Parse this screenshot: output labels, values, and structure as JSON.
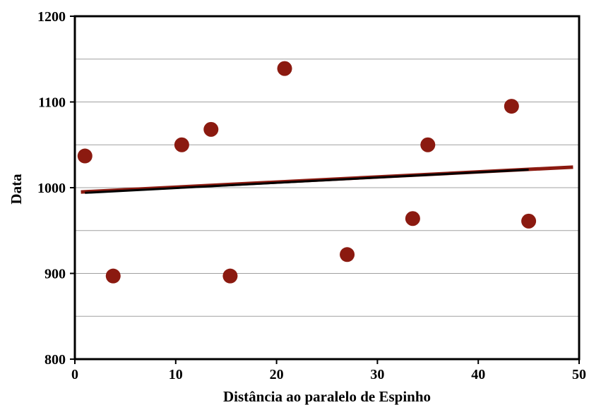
{
  "chart_data": {
    "type": "scatter",
    "title": "",
    "xlabel": "Distância ao paralelo de Espinho",
    "ylabel": "Data",
    "xlim": [
      0,
      50
    ],
    "ylim": [
      800,
      1200
    ],
    "x_ticks": [
      0,
      10,
      20,
      30,
      40,
      50
    ],
    "y_ticks": [
      800,
      900,
      1000,
      1100,
      1200
    ],
    "y_gridlines": [
      850,
      900,
      950,
      1000,
      1050,
      1100,
      1150
    ],
    "grid": "horizontal",
    "legend": "none",
    "colors": {
      "points": "#8b1a10",
      "trend_red": "#8b1a10",
      "trend_black": "#000000",
      "frame": "#000000"
    },
    "series": [
      {
        "points": [
          {
            "x": 1,
            "y": 1037
          },
          {
            "x": 3.8,
            "y": 897
          },
          {
            "x": 10.6,
            "y": 1050
          },
          {
            "x": 13.5,
            "y": 1068
          },
          {
            "x": 15.4,
            "y": 897
          },
          {
            "x": 20.8,
            "y": 1139
          },
          {
            "x": 27,
            "y": 922
          },
          {
            "x": 33.5,
            "y": 964
          },
          {
            "x": 35,
            "y": 1050
          },
          {
            "x": 43.3,
            "y": 1095
          },
          {
            "x": 45,
            "y": 961
          }
        ]
      }
    ],
    "trendlines": [
      {
        "color": "#8b1a10",
        "from": {
          "x": 0.6,
          "y": 995
        },
        "to": {
          "x": 49.4,
          "y": 1024
        }
      },
      {
        "color": "#000000",
        "from": {
          "x": 1,
          "y": 994
        },
        "to": {
          "x": 45,
          "y": 1021
        }
      }
    ]
  }
}
